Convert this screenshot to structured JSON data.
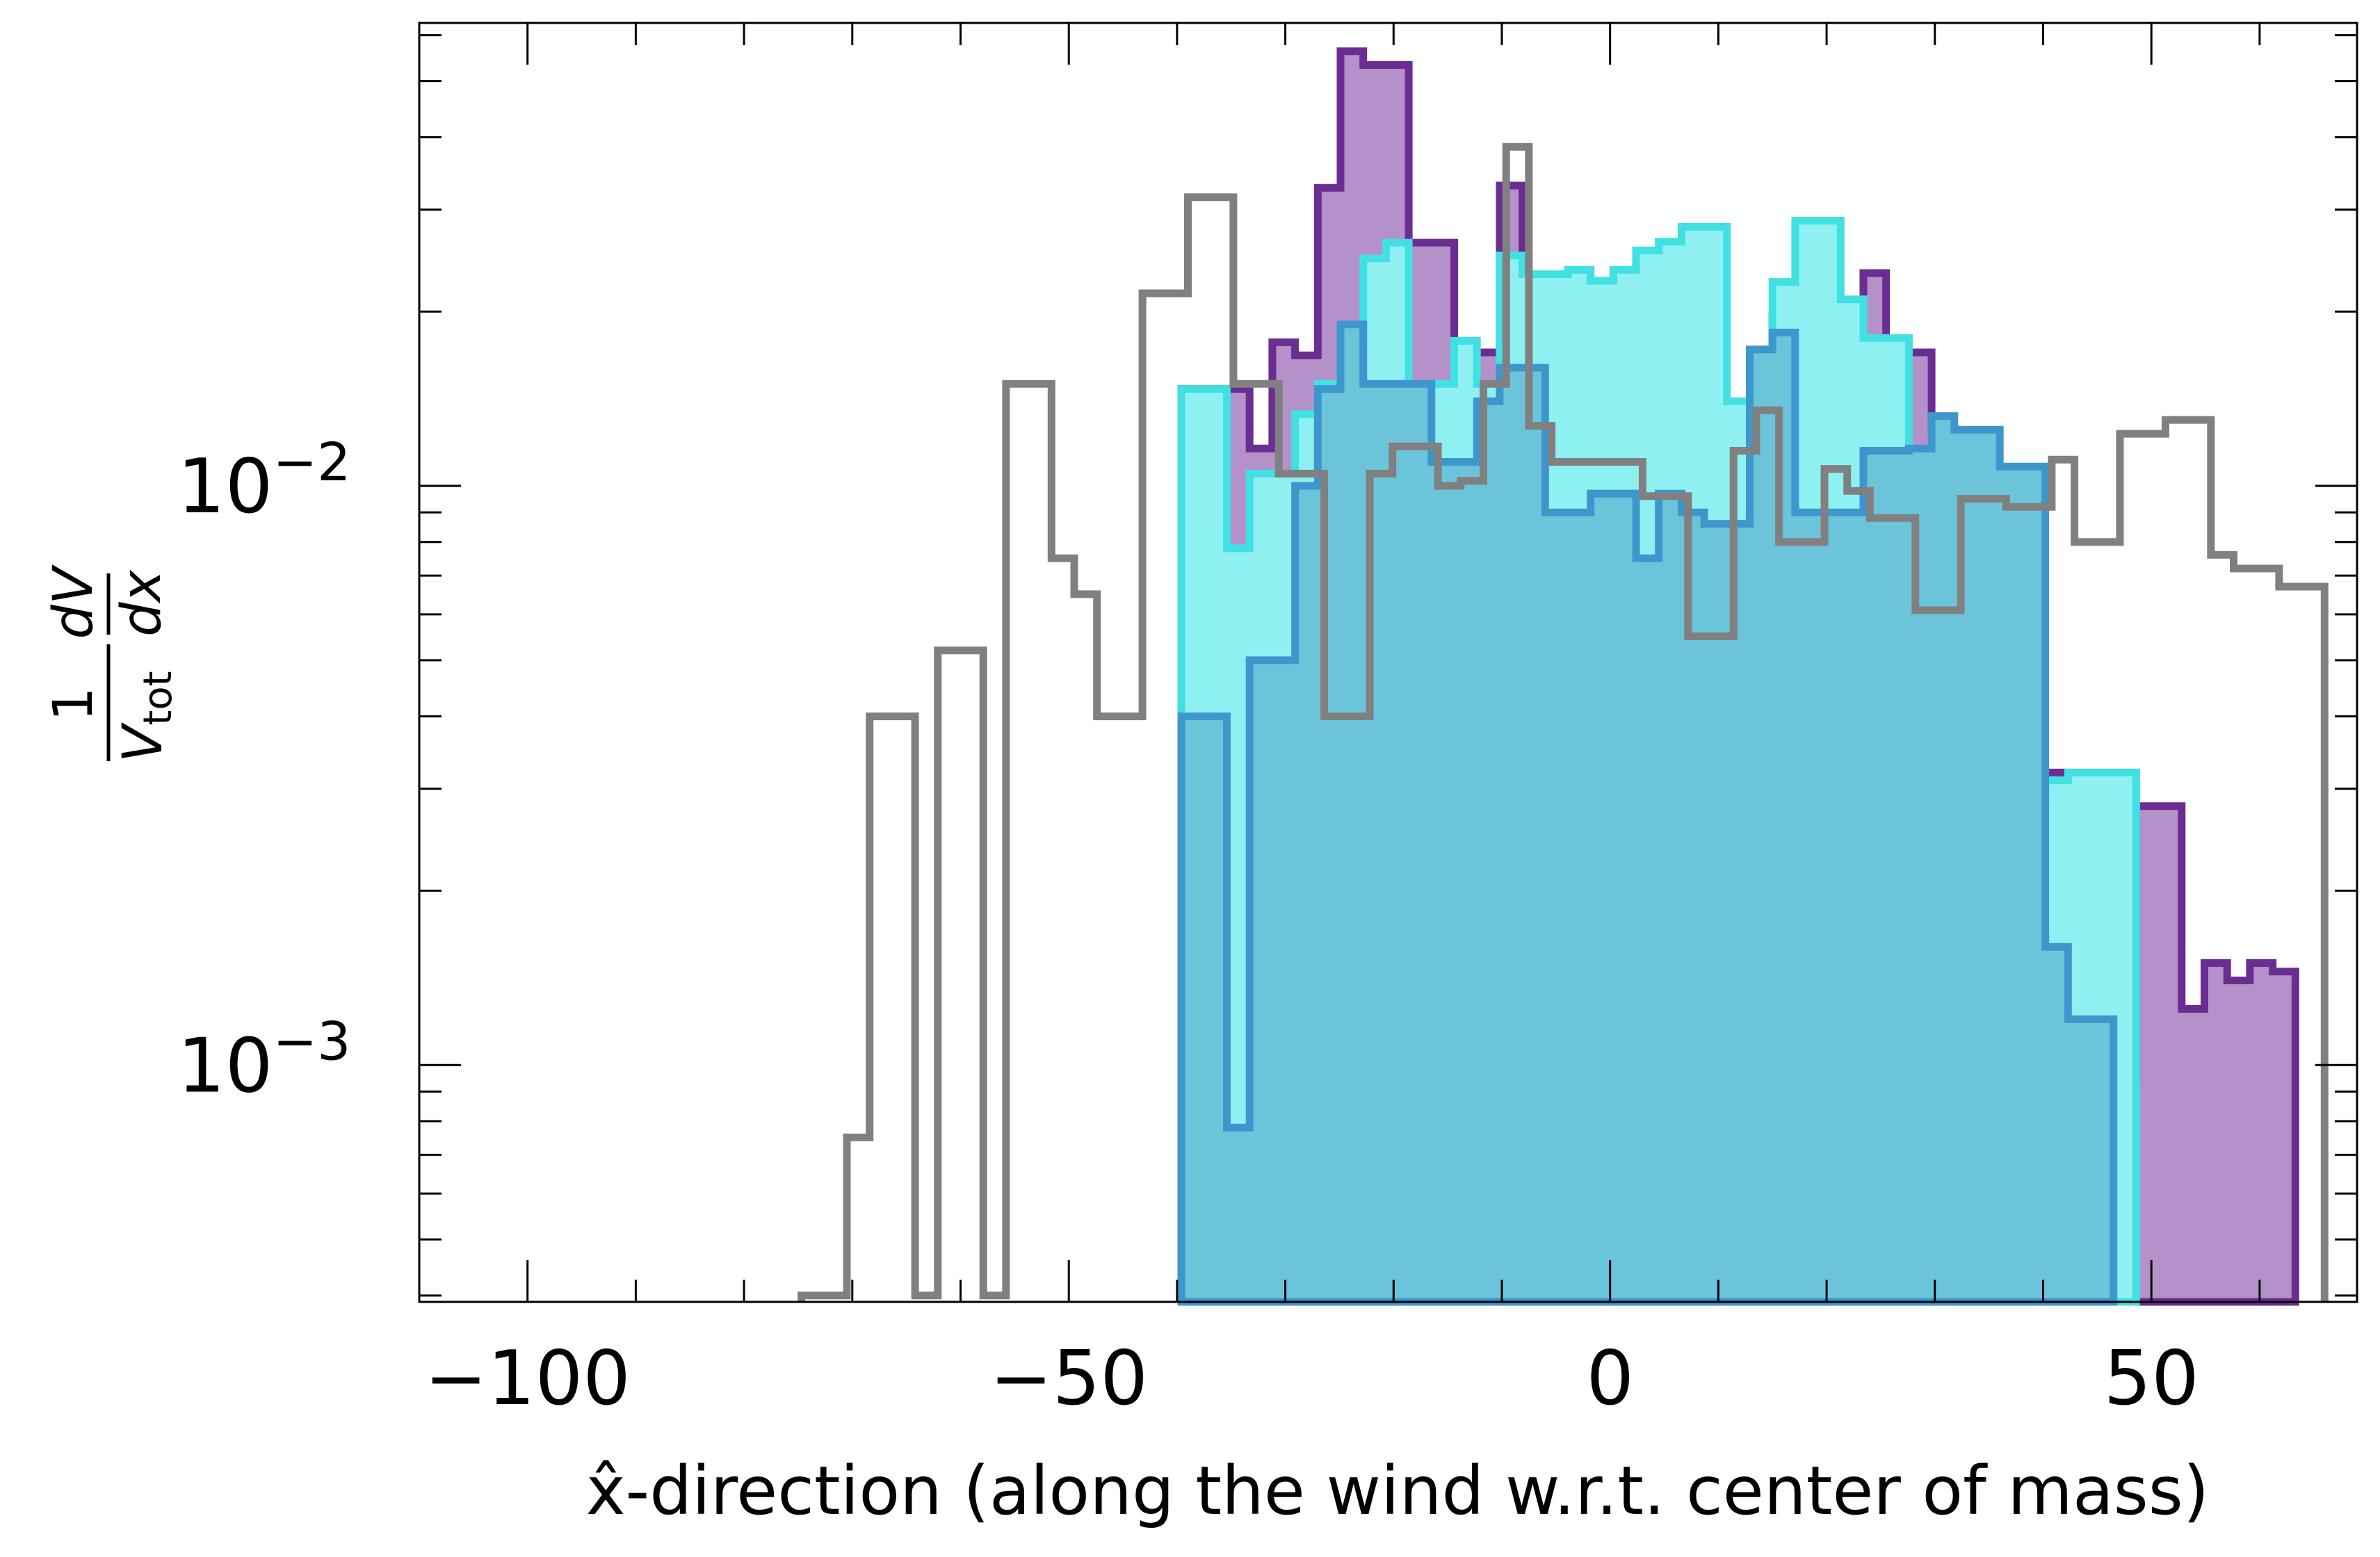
{
  "chart_data": {
    "type": "histogram",
    "title": "",
    "xlabel": "x̂-direction (along the wind w.r.t. center of mass)",
    "ylabel": {
      "num_1": "1",
      "num_2": "dV",
      "den_1": "V",
      "den_sub": "tot",
      "den_2": "dx"
    },
    "xlim": [
      -110,
      69
    ],
    "ylim": [
      0.00039,
      0.063
    ],
    "yscale": "log",
    "grid": false,
    "legend": "none",
    "x_ticks": [
      {
        "value": -100,
        "label": "−100"
      },
      {
        "value": -50,
        "label": "−50"
      },
      {
        "value": 0,
        "label": "0"
      },
      {
        "value": 50,
        "label": "50"
      }
    ],
    "y_ticks": [
      {
        "value": 0.001,
        "base": "10",
        "exp": "−3"
      },
      {
        "value": 0.01,
        "base": "10",
        "exp": "−2"
      }
    ],
    "bin_width": 2.1,
    "series": [
      {
        "key": "purple",
        "filled": true,
        "fill": "#b491c8",
        "stroke": "#6c2d92",
        "x0": -39.6,
        "values": [
          0.0147,
          0.0147,
          0.0147,
          0.0116,
          0.0177,
          0.0168,
          0.0327,
          0.0563,
          0.0533,
          0.0533,
          0.0263,
          0.0263,
          0.017,
          0.017,
          0.033,
          0.02,
          0.02,
          0.018,
          0.0133,
          0.0133,
          0.01,
          0.0093,
          0.0083,
          0.0095,
          0.01,
          0.0095,
          0.0197,
          0.0197,
          0.0117,
          0.0117,
          0.0233,
          0.017,
          0.017,
          0.0126,
          0.0058,
          0.0058,
          0.0041,
          0.0032,
          0.0032,
          0.0028,
          0.0022,
          0.00095,
          0.0028,
          0.0028,
          0.00125,
          0.0015,
          0.0014,
          0.0015,
          0.00145
        ],
        "end": 0.00039
      },
      {
        "key": "cyan",
        "filled": true,
        "fill": "#8ff0f2",
        "stroke": "#40e0e3",
        "x0": -39.6,
        "values": [
          0.0147,
          0.0147,
          0.0078,
          0.0105,
          0.0105,
          0.0133,
          0.015,
          0.018,
          0.0247,
          0.0263,
          0.015,
          0.015,
          0.0178,
          0.015,
          0.025,
          0.0232,
          0.0232,
          0.0236,
          0.0226,
          0.0236,
          0.0255,
          0.0264,
          0.028,
          0.028,
          0.014,
          0.014,
          0.0225,
          0.0287,
          0.0287,
          0.021,
          0.018,
          0.018,
          0.0094,
          0.0094,
          0.0054,
          0.0054,
          0.0049,
          0.0031,
          0.0031,
          0.0032,
          0.0032,
          0.0032
        ],
        "end": 0.00039
      },
      {
        "key": "blue",
        "filled": true,
        "fill": "#6cc4da",
        "stroke": "#3e97cc",
        "x0": -39.6,
        "values": [
          0.004,
          0.004,
          0.00078,
          0.005,
          0.005,
          0.01,
          0.0147,
          0.019,
          0.015,
          0.015,
          0.015,
          0.011,
          0.011,
          0.014,
          0.016,
          0.016,
          0.009,
          0.009,
          0.0097,
          0.0097,
          0.0075,
          0.0097,
          0.009,
          0.0086,
          0.0086,
          0.0172,
          0.0184,
          0.009,
          0.009,
          0.009,
          0.0115,
          0.0115,
          0.0116,
          0.0132,
          0.0125,
          0.0125,
          0.0108,
          0.0108,
          0.0016,
          0.0012,
          0.0012
        ],
        "end": 0.00039
      },
      {
        "key": "gray",
        "filled": false,
        "fill": "none",
        "stroke": "#808080",
        "x0": -74.7,
        "values": [
          0.0004,
          0.0004,
          0.00075,
          0.004,
          0.004,
          0.0004,
          0.0052,
          0.0052,
          0.0004,
          0.015,
          0.015,
          0.0075,
          0.0065,
          0.004,
          0.004,
          0.0215,
          0.0215,
          0.0315,
          0.0315,
          0.015,
          0.015,
          0.0105,
          0.0105,
          0.004,
          0.004,
          0.0105,
          0.0117,
          0.0117,
          0.01,
          0.0102,
          0.015,
          0.0385,
          0.0127,
          0.011,
          0.011,
          0.011,
          0.011,
          0.0096,
          0.0096,
          0.0055,
          0.0055,
          0.0115,
          0.0135,
          0.008,
          0.008,
          0.0107,
          0.0098,
          0.0088,
          0.0088,
          0.0061,
          0.0061,
          0.0095,
          0.0095,
          0.0092,
          0.0092,
          0.0111,
          0.008,
          0.008,
          0.0123,
          0.0123,
          0.013,
          0.013,
          0.0076,
          0.0072,
          0.0072,
          0.0067,
          0.0067
        ],
        "end": 0.00039
      }
    ]
  }
}
